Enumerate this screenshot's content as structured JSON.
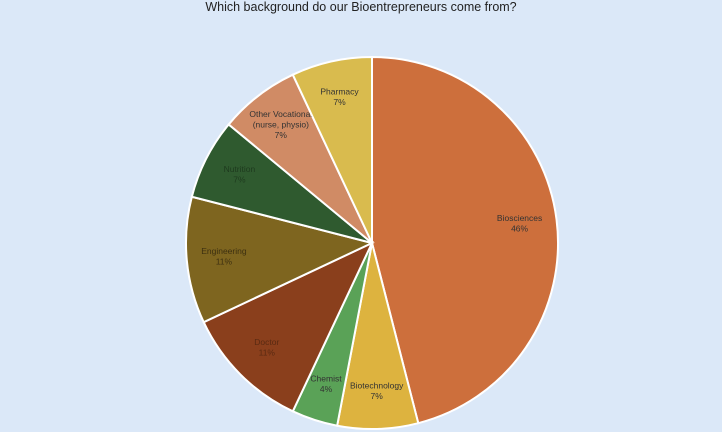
{
  "chart_data": {
    "type": "pie",
    "title": "Which background do our Bioentrepreneurs come from?",
    "slices": [
      {
        "label_lines": [
          "Biosciences"
        ],
        "category": "Biosciences",
        "value": 46,
        "value_label": "46%",
        "color": "#cd6f3c",
        "text_color": "#333333"
      },
      {
        "label_lines": [
          "Biotechnology"
        ],
        "category": "Biotechnology",
        "value": 7,
        "value_label": "7%",
        "color": "#ddb33f",
        "text_color": "#333333"
      },
      {
        "label_lines": [
          "Chemist"
        ],
        "category": "Chemist",
        "value": 4,
        "value_label": "4%",
        "color": "#5aa257",
        "text_color": "#333333"
      },
      {
        "label_lines": [
          "Doctor"
        ],
        "category": "Doctor",
        "value": 11,
        "value_label": "11%",
        "color": "#8a3f1c",
        "text_color": "#5a2a12"
      },
      {
        "label_lines": [
          "Engineering"
        ],
        "category": "Engineering",
        "value": 11,
        "value_label": "11%",
        "color": "#7e651f",
        "text_color": "#3d3010"
      },
      {
        "label_lines": [
          "Nutrition"
        ],
        "category": "Nutrition",
        "value": 7,
        "value_label": "7%",
        "color": "#2f5a2f",
        "text_color": "#1e3a1e"
      },
      {
        "label_lines": [
          "Other Vocational",
          "(nurse, physio)"
        ],
        "category": "Other Vocational (nurse, physio)",
        "value": 7,
        "value_label": "7%",
        "color": "#d08b65",
        "text_color": "#333333"
      },
      {
        "label_lines": [
          "Pharmacy"
        ],
        "category": "Pharmacy",
        "value": 7,
        "value_label": "7%",
        "color": "#d9bb4e",
        "text_color": "#333333"
      }
    ],
    "start": "top",
    "direction": "clockwise",
    "legend": "none"
  }
}
